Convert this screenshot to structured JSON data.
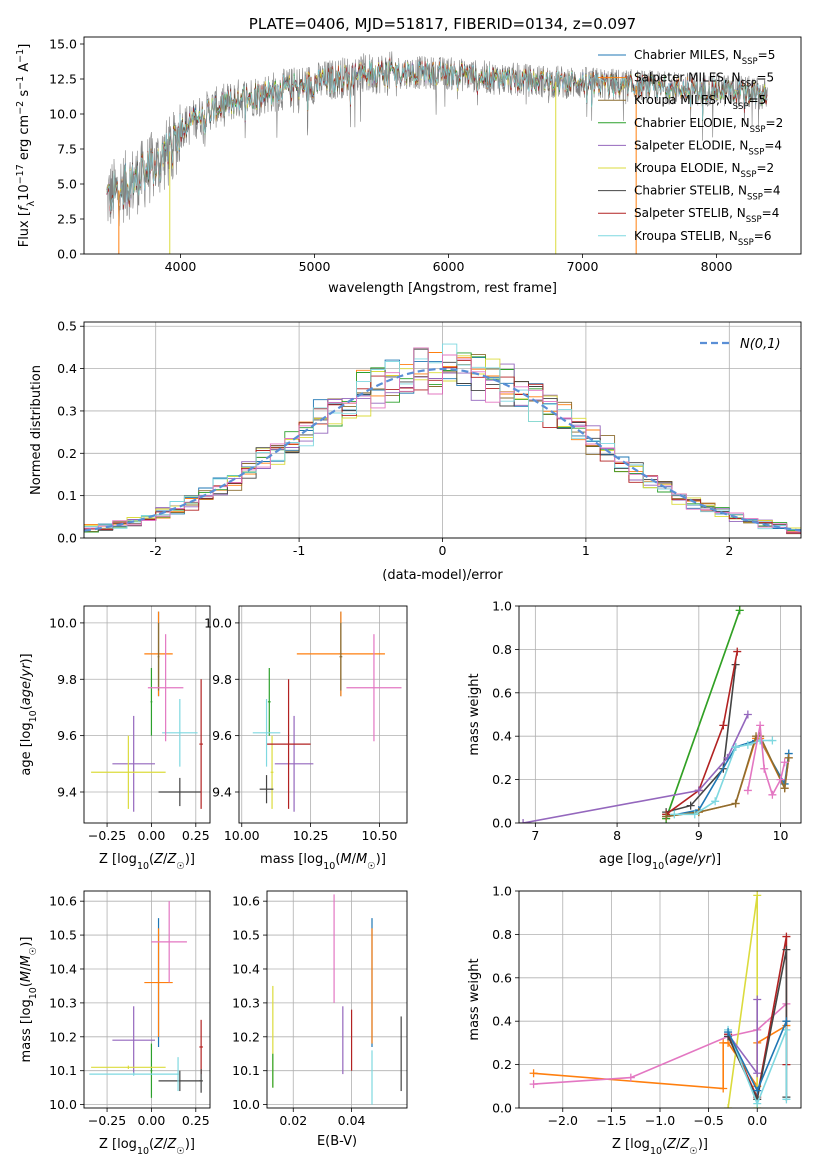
{
  "colors": {
    "Chabrier MILES": "#1f77b4",
    "Salpeter MILES": "#ff7f0e",
    "Kroupa MILES": "#8c6d31",
    "Chabrier ELODIE": "#2ca02c",
    "Salpeter ELODIE": "#9467bd",
    "Kroupa ELODIE": "#dbdb3d",
    "Chabrier STELIB": "#444444",
    "Salpeter STELIB": "#b22222",
    "Kroupa STELIB": "#7fd8e0",
    "gauss": "#5a8fd6",
    "grid": "#b0b0b0"
  },
  "chart_data": [
    {
      "id": "spectrum",
      "type": "line",
      "title": "PLATE=0406, MJD=51817, FIBERID=0134, z=0.097",
      "xlabel": "wavelength [Angstrom, rest frame]",
      "ylabel": "Flux [f_λ 10^-17 erg cm^-2 s^-1 A^-1]",
      "xlim": [
        3280,
        8630
      ],
      "ylim": [
        0,
        15.5
      ],
      "xticks": [
        4000,
        5000,
        6000,
        7000,
        8000
      ],
      "yticks": [
        0.0,
        2.5,
        5.0,
        7.5,
        10.0,
        12.5,
        15.0
      ],
      "legend_position": "right",
      "legend": [
        {
          "name": "Chabrier MILES",
          "n": "5"
        },
        {
          "name": "Salpeter MILES",
          "n": "5"
        },
        {
          "name": "Kroupa MILES",
          "n": "5"
        },
        {
          "name": "Chabrier ELODIE",
          "n": "2"
        },
        {
          "name": "Salpeter ELODIE",
          "n": "4"
        },
        {
          "name": "Kroupa ELODIE",
          "n": "2"
        },
        {
          "name": "Chabrier STELIB",
          "n": "4"
        },
        {
          "name": "Salpeter STELIB",
          "n": "4"
        },
        {
          "name": "Kroupa STELIB",
          "n": "6"
        }
      ],
      "continuum": [
        [
          3450,
          4.0
        ],
        [
          3550,
          4.6
        ],
        [
          3700,
          5.5
        ],
        [
          3850,
          6.7
        ],
        [
          3950,
          7.6
        ],
        [
          4000,
          9.0
        ],
        [
          4200,
          10.2
        ],
        [
          4400,
          11.0
        ],
        [
          4700,
          11.6
        ],
        [
          5000,
          12.2
        ],
        [
          5300,
          12.8
        ],
        [
          5600,
          13.0
        ],
        [
          6000,
          12.9
        ],
        [
          6300,
          12.6
        ],
        [
          6600,
          12.4
        ],
        [
          7000,
          12.2
        ],
        [
          7400,
          12.0
        ],
        [
          7800,
          11.8
        ],
        [
          8200,
          11.6
        ],
        [
          8380,
          11.3
        ]
      ],
      "spikes_down": [
        [
          3540,
          0
        ],
        [
          3920,
          0
        ],
        [
          6800,
          0
        ],
        [
          7400,
          0
        ]
      ]
    },
    {
      "id": "residual-histogram",
      "type": "step",
      "xlabel": "(data-model)/error",
      "ylabel": "Normed distribution",
      "xlim": [
        -2.5,
        2.5
      ],
      "ylim": [
        0,
        0.51
      ],
      "xticks": [
        -2,
        -1,
        0,
        1,
        2
      ],
      "yticks": [
        0.0,
        0.1,
        0.2,
        0.3,
        0.4,
        0.5
      ],
      "legend": "N(0,1)",
      "bin_width": 0.1
    },
    {
      "id": "age-vs-Z",
      "type": "errorbar",
      "xlabel": "Z [log10(Z/Z☉)]",
      "ylabel": "age  [log10(age/yr)]",
      "xlim": [
        -0.38,
        0.33
      ],
      "ylim": [
        9.29,
        10.06
      ],
      "xticks": [
        -0.25,
        0.0,
        0.25
      ],
      "xticklabels": [
        "−0.25",
        "0.00",
        "0.25"
      ],
      "yticks": [
        9.4,
        9.6,
        9.8,
        10.0
      ],
      "points": [
        {
          "model": "Chabrier MILES",
          "x": 0.04,
          "xerr": 0.005,
          "y": 9.89,
          "yerr": 0.15
        },
        {
          "model": "Salpeter MILES",
          "x": 0.04,
          "xerr": 0.08,
          "y": 9.89,
          "yerr": 0.15
        },
        {
          "model": "Kroupa MILES",
          "x": 0.04,
          "xerr": 0.005,
          "y": 9.88,
          "yerr": 0.12
        },
        {
          "model": "Chabrier ELODIE",
          "x": 0.0,
          "xerr": 0.005,
          "y": 9.72,
          "yerr": 0.12
        },
        {
          "model": "Salpeter ELODIE",
          "x": -0.1,
          "xerr": 0.12,
          "y": 9.5,
          "yerr": 0.17
        },
        {
          "model": "Kroupa ELODIE",
          "x": -0.13,
          "xerr": 0.21,
          "y": 9.47,
          "yerr": 0.13
        },
        {
          "model": "Chabrier STELIB",
          "x": 0.16,
          "xerr": 0.12,
          "y": 9.4,
          "yerr": 0.05
        },
        {
          "model": "Salpeter STELIB",
          "x": 0.28,
          "xerr": 0.01,
          "y": 9.57,
          "yerr": 0.23
        },
        {
          "model": "Kroupa STELIB",
          "x": 0.16,
          "xerr": 0.1,
          "y": 9.61,
          "yerr": 0.12
        }
      ],
      "extra_points": [
        {
          "color": "#e377c2",
          "x": 0.08,
          "xerr": 0.1,
          "y": 9.77,
          "yerr": 0.19
        }
      ]
    },
    {
      "id": "age-vs-mass",
      "type": "errorbar",
      "xlabel": "mass [log10(M/M☉)]",
      "xlim": [
        9.99,
        10.6
      ],
      "ylim": [
        9.29,
        10.06
      ],
      "xticks": [
        10.0,
        10.25,
        10.5
      ],
      "xticklabels": [
        "10.00",
        "10.25",
        "10.50"
      ],
      "yticks": [
        9.4,
        9.6,
        9.8,
        10.0
      ],
      "points": [
        {
          "model": "Chabrier MILES",
          "x": 10.36,
          "xerr": 0.005,
          "y": 9.89,
          "yerr": 0.15
        },
        {
          "model": "Salpeter MILES",
          "x": 10.36,
          "xerr": 0.16,
          "y": 9.89,
          "yerr": 0.15
        },
        {
          "model": "Kroupa MILES",
          "x": 10.36,
          "xerr": 0.005,
          "y": 9.88,
          "yerr": 0.12
        },
        {
          "model": "Chabrier ELODIE",
          "x": 10.1,
          "xerr": 0.005,
          "y": 9.72,
          "yerr": 0.12
        },
        {
          "model": "Salpeter ELODIE",
          "x": 10.19,
          "xerr": 0.07,
          "y": 9.5,
          "yerr": 0.17
        },
        {
          "model": "Kroupa ELODIE",
          "x": 10.11,
          "xerr": 0.005,
          "y": 9.47,
          "yerr": 0.13
        },
        {
          "model": "Chabrier STELIB",
          "x": 10.09,
          "xerr": 0.025,
          "y": 9.41,
          "yerr": 0.05
        },
        {
          "model": "Salpeter STELIB",
          "x": 10.17,
          "xerr": 0.08,
          "y": 9.57,
          "yerr": 0.23
        },
        {
          "model": "Kroupa STELIB",
          "x": 10.09,
          "xerr": 0.05,
          "y": 9.61,
          "yerr": 0.12
        }
      ],
      "extra_points": [
        {
          "color": "#e377c2",
          "x": 10.48,
          "xerr": 0.1,
          "y": 9.77,
          "yerr": 0.19
        }
      ]
    },
    {
      "id": "mass-weight-vs-age",
      "type": "line",
      "xlabel": "age  [log10(age/yr)]",
      "ylabel": "mass weight",
      "xlim": [
        6.8,
        10.25
      ],
      "ylim": [
        0,
        1.0
      ],
      "xticks": [
        7,
        8,
        9,
        10
      ],
      "yticks": [
        0.0,
        0.2,
        0.4,
        0.6,
        0.8,
        1.0
      ],
      "series": [
        {
          "model": "Kroupa ELODIE",
          "x": [
            8.6,
            9.5
          ],
          "y": [
            0.02,
            0.98
          ]
        },
        {
          "model": "Chabrier ELODIE",
          "x": [
            8.6,
            9.5
          ],
          "y": [
            0.02,
            0.98
          ]
        },
        {
          "model": "Chabrier STELIB",
          "x": [
            8.6,
            8.9,
            9.3,
            9.45
          ],
          "y": [
            0.05,
            0.08,
            0.25,
            0.73
          ]
        },
        {
          "model": "Salpeter STELIB",
          "x": [
            8.6,
            9.0,
            9.3,
            9.47
          ],
          "y": [
            0.04,
            0.15,
            0.45,
            0.79
          ]
        },
        {
          "model": "Salpeter ELODIE",
          "x": [
            6.85,
            9.0,
            9.35,
            9.6
          ],
          "y": [
            0.0,
            0.15,
            0.3,
            0.5
          ]
        },
        {
          "model": "Chabrier MILES",
          "x": [
            8.6,
            9.0,
            9.45,
            9.7,
            9.75,
            10.05,
            10.1
          ],
          "y": [
            0.03,
            0.06,
            0.35,
            0.38,
            0.38,
            0.18,
            0.32
          ]
        },
        {
          "model": "Salpeter MILES",
          "x": [
            8.6,
            9.0,
            9.45,
            9.7,
            9.75,
            10.05,
            10.1
          ],
          "y": [
            0.03,
            0.05,
            0.09,
            0.39,
            0.39,
            0.16,
            0.3
          ]
        },
        {
          "model": "Kroupa MILES",
          "x": [
            8.6,
            9.0,
            9.45,
            9.7,
            9.75,
            10.05,
            10.1
          ],
          "y": [
            0.03,
            0.05,
            0.09,
            0.4,
            0.4,
            0.16,
            0.3
          ]
        },
        {
          "model": "Kroupa STELIB",
          "x": [
            8.7,
            8.95,
            9.2,
            9.45,
            9.6,
            9.75,
            9.9
          ],
          "y": [
            0.04,
            0.04,
            0.1,
            0.35,
            0.36,
            0.38,
            0.38
          ]
        },
        {
          "model": "pink",
          "x": [
            9.6,
            9.75,
            9.8,
            9.9,
            10.0,
            10.05
          ],
          "y": [
            0.15,
            0.45,
            0.25,
            0.13,
            0.2,
            0.28
          ]
        }
      ]
    },
    {
      "id": "mass-vs-Z",
      "type": "errorbar",
      "xlabel": "Z [log10(Z/Z☉)]",
      "ylabel": "mass [log10(M/M☉)]",
      "xlim": [
        -0.38,
        0.33
      ],
      "ylim": [
        9.99,
        10.63
      ],
      "xticks": [
        -0.25,
        0.0,
        0.25
      ],
      "xticklabels": [
        "−0.25",
        "0.00",
        "0.25"
      ],
      "yticks": [
        10.0,
        10.1,
        10.2,
        10.3,
        10.4,
        10.5,
        10.6
      ],
      "points": [
        {
          "model": "Chabrier MILES",
          "x": 0.04,
          "xerr": 0.005,
          "y": 10.36,
          "yerr": 0.19
        },
        {
          "model": "Salpeter MILES",
          "x": 0.04,
          "xerr": 0.08,
          "y": 10.36,
          "yerr": 0.16
        },
        {
          "model": "Chabrier ELODIE",
          "x": 0.0,
          "xerr": 0.005,
          "y": 10.1,
          "yerr": 0.08
        },
        {
          "model": "Salpeter ELODIE",
          "x": -0.1,
          "xerr": 0.12,
          "y": 10.19,
          "yerr": 0.1
        },
        {
          "model": "Kroupa ELODIE",
          "x": -0.13,
          "xerr": 0.21,
          "y": 10.11,
          "yerr": 0.005
        },
        {
          "model": "Chabrier STELIB",
          "x": 0.16,
          "xerr": 0.12,
          "y": 10.07,
          "yerr": 0.03
        },
        {
          "model": "Salpeter STELIB",
          "x": 0.28,
          "xerr": 0.01,
          "y": 10.17,
          "yerr": 0.08
        },
        {
          "model": "Kroupa STELIB",
          "x": -0.1,
          "xerr": 0.25,
          "y": 10.09,
          "yerr": 0.005
        }
      ],
      "extra_points": [
        {
          "color": "#e377c2",
          "x": 0.1,
          "xerr": 0.1,
          "y": 10.48,
          "yerr": 0.12
        },
        {
          "color": "#444444",
          "x": 0.28,
          "xerr": 0.01,
          "y": 10.07,
          "yerr": 0.035
        },
        {
          "color": "#7fd8e0",
          "x": 0.15,
          "xerr": 0.005,
          "y": 10.09,
          "yerr": 0.05
        }
      ]
    },
    {
      "id": "mass-vs-EBV",
      "type": "errorbar",
      "xlabel": "E(B-V)",
      "xlim": [
        0.011,
        0.059
      ],
      "ylim": [
        9.99,
        10.63
      ],
      "xticks": [
        0.02,
        0.04
      ],
      "xticklabels": [
        "0.02",
        "0.04"
      ],
      "yticks": [
        10.0,
        10.1,
        10.2,
        10.3,
        10.4,
        10.5,
        10.6
      ],
      "points": [
        {
          "model": "Kroupa ELODIE",
          "x": 0.013,
          "xerr": 0.0,
          "y": 10.2,
          "yerr": 0.15
        },
        {
          "model": "Chabrier ELODIE",
          "x": 0.013,
          "xerr": 0.0,
          "y": 10.1,
          "yerr": 0.05
        },
        {
          "model": "Salpeter ELODIE",
          "x": 0.037,
          "xerr": 0.0,
          "y": 10.19,
          "yerr": 0.1
        },
        {
          "model": "Salpeter STELIB",
          "x": 0.04,
          "xerr": 0.0,
          "y": 10.19,
          "yerr": 0.09
        },
        {
          "model": "Chabrier MILES",
          "x": 0.047,
          "xerr": 0.0,
          "y": 10.36,
          "yerr": 0.19
        },
        {
          "model": "Salpeter MILES",
          "x": 0.047,
          "xerr": 0.0,
          "y": 10.35,
          "yerr": 0.17
        },
        {
          "model": "Kroupa STELIB",
          "x": 0.047,
          "xerr": 0.0,
          "y": 10.08,
          "yerr": 0.08
        },
        {
          "model": "Chabrier STELIB",
          "x": 0.057,
          "xerr": 0.0,
          "y": 10.15,
          "yerr": 0.11
        }
      ],
      "extra_points": [
        {
          "color": "#e377c2",
          "x": 0.034,
          "xerr": 0.0,
          "y": 10.46,
          "yerr": 0.16
        }
      ]
    },
    {
      "id": "mass-weight-vs-Z",
      "type": "line",
      "xlabel": "Z [log10(Z/Z☉)]",
      "ylabel": "mass weight",
      "xlim": [
        -2.45,
        0.45
      ],
      "ylim": [
        0,
        1.0
      ],
      "xticks": [
        -2.0,
        -1.5,
        -1.0,
        -0.5,
        0.0
      ],
      "xticklabels": [
        "−2.0",
        "−1.5",
        "−1.0",
        "−0.5",
        "0.0"
      ],
      "yticks": [
        0.0,
        0.2,
        0.4,
        0.6,
        0.8,
        1.0
      ],
      "series": [
        {
          "model": "Salpeter MILES",
          "x": [
            -2.3,
            -0.35,
            -0.35,
            -0.3,
            0.0,
            0.0,
            0.3,
            0.3
          ],
          "y": [
            0.16,
            0.09,
            0.3,
            0.3,
            0.1,
            0.3,
            0.38,
            0.4
          ]
        },
        {
          "model": "pink",
          "x": [
            -2.3,
            -1.3,
            -0.3,
            0.0,
            0.3
          ],
          "y": [
            0.11,
            0.14,
            0.33,
            0.36,
            0.48
          ]
        },
        {
          "model": "Kroupa ELODIE",
          "x": [
            -0.3,
            0.0,
            0.0
          ],
          "y": [
            0.0,
            0.98,
            0.0
          ]
        },
        {
          "model": "Salpeter ELODIE",
          "x": [
            -0.3,
            0.0,
            0.0
          ],
          "y": [
            0.34,
            0.16,
            0.5
          ]
        },
        {
          "model": "Salpeter STELIB",
          "x": [
            -0.3,
            0.0,
            0.3,
            0.3
          ],
          "y": [
            0.34,
            0.05,
            0.79,
            0.2
          ]
        },
        {
          "model": "Chabrier STELIB",
          "x": [
            -0.3,
            0.0,
            0.3,
            0.3
          ],
          "y": [
            0.33,
            0.04,
            0.73,
            0.05
          ]
        },
        {
          "model": "Kroupa STELIB",
          "x": [
            -0.3,
            0.0,
            0.3,
            0.3
          ],
          "y": [
            0.36,
            0.02,
            0.36,
            0.04
          ]
        },
        {
          "model": "Chabrier MILES",
          "x": [
            -0.3,
            0.0,
            0.3
          ],
          "y": [
            0.35,
            0.08,
            0.4
          ]
        }
      ]
    }
  ]
}
